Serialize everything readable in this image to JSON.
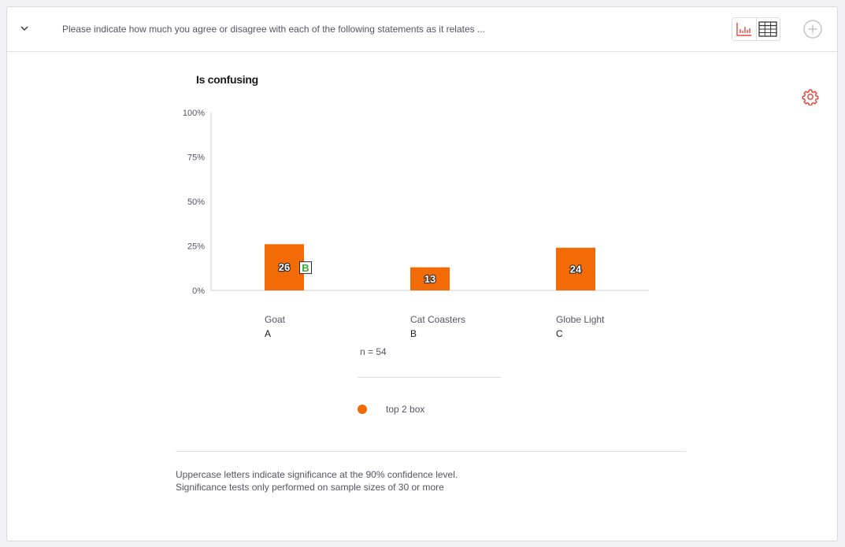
{
  "header": {
    "question": "Please indicate how much you agree or disagree with each of the following statements as it relates ...",
    "chart_view_icon": "bar-chart-icon",
    "table_view_icon": "table-icon",
    "add_icon": "plus-circle-icon",
    "collapse_icon": "chevron-down-icon"
  },
  "settings_icon": "gear-icon",
  "colors": {
    "bar": "#f26b07",
    "accent": "#e8463a",
    "sig_letter": "#3aa63a",
    "text_muted": "#545466"
  },
  "chart_data": {
    "type": "bar",
    "title": "Is confusing",
    "categories": [
      "Goat",
      "Cat Coasters",
      "Globe Light"
    ],
    "category_letters": [
      "A",
      "B",
      "C"
    ],
    "series": [
      {
        "name": "top 2 box",
        "values": [
          26,
          13,
          24
        ]
      }
    ],
    "significance": [
      "B",
      "",
      ""
    ],
    "ylim": [
      0,
      100
    ],
    "yticks": [
      "0%",
      "25%",
      "50%",
      "75%",
      "100%"
    ],
    "ytick_values": [
      0,
      25,
      50,
      75,
      100
    ],
    "grid": false,
    "legend_position": "bottom",
    "n_label": "n = 54"
  },
  "footnotes": [
    "Uppercase letters indicate significance at the 90% confidence level.",
    "Significance tests only performed on sample sizes of 30 or more"
  ]
}
